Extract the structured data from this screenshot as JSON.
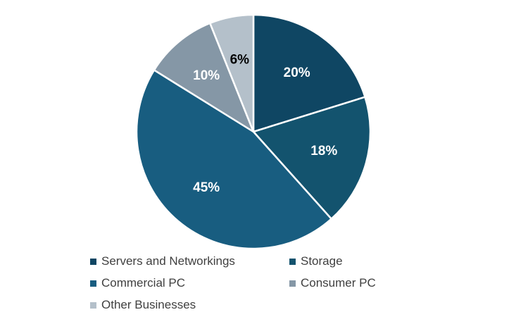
{
  "chart_data": {
    "type": "pie",
    "title": "",
    "categories": [
      "Servers and Networkings",
      "Storage",
      "Commercial PC",
      "Consumer PC",
      "Other Businesses"
    ],
    "values": [
      20,
      18,
      45,
      10,
      6
    ],
    "value_labels": [
      "20%",
      "18%",
      "45%",
      "10%",
      "6%"
    ],
    "colors": [
      "#0f4663",
      "#13536e",
      "#185d80",
      "#8597a6",
      "#b4c0ca"
    ],
    "label_colors": [
      "#ffffff",
      "#ffffff",
      "#ffffff",
      "#ffffff",
      "#000000"
    ],
    "start_angle_deg": 0,
    "direction": "clockwise",
    "legend_position": "bottom"
  }
}
